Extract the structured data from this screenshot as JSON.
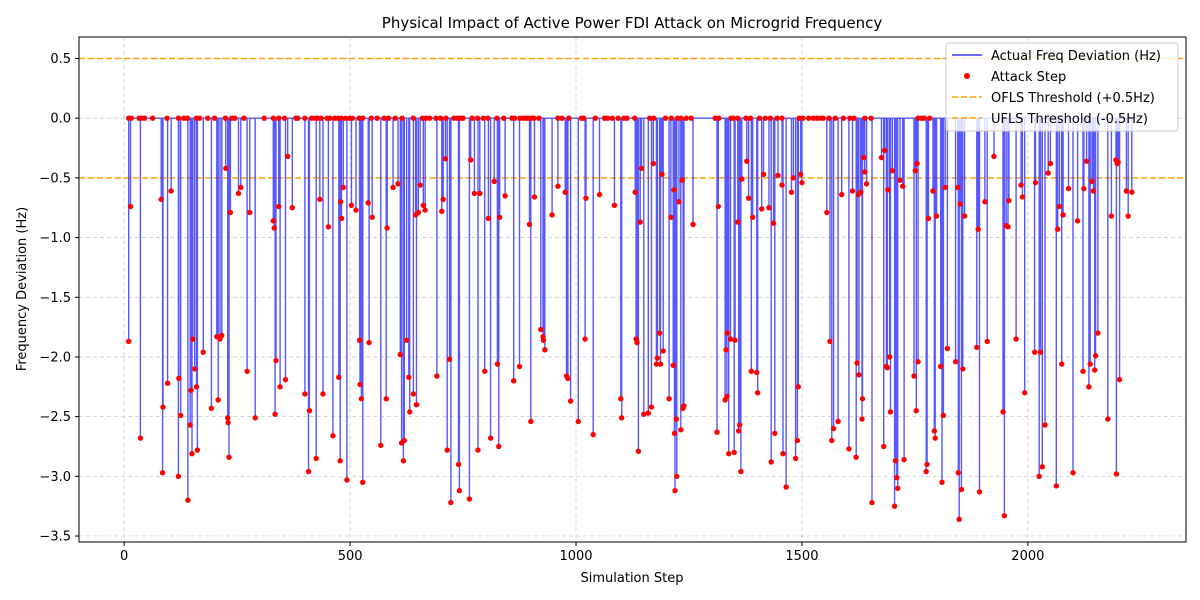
{
  "chart_data": {
    "type": "line",
    "title": "Physical Impact of Active Power FDI Attack on Microgrid Frequency",
    "xlabel": "Simulation Step",
    "ylabel": "Frequency Deviation (Hz)",
    "xlim": [
      -100,
      2350
    ],
    "ylim": [
      -3.55,
      0.68
    ],
    "xticks": [
      0,
      500,
      1000,
      1500,
      2000
    ],
    "yticks": [
      0.5,
      0.0,
      -0.5,
      -1.0,
      -1.5,
      -2.0,
      -2.5,
      -3.0,
      -3.5
    ],
    "ytick_labels": [
      "0.5",
      "0.0",
      "−0.5",
      "−1.0",
      "−1.5",
      "−2.0",
      "−2.5",
      "−3.0",
      "−3.5"
    ],
    "grid": true,
    "legend": {
      "position": "top-right",
      "entries": [
        "Actual Freq Deviation (Hz)",
        "Attack Step",
        "OFLS Threshold (+0.5Hz)",
        "UFLS Threshold (-0.5Hz)"
      ]
    },
    "thresholds": [
      0.5,
      -0.5
    ],
    "colors": {
      "line": "#3b3bff",
      "points": "#ff0000",
      "threshold": "#ffa500",
      "grid": "#cccccc"
    },
    "series_name": "Actual Freq Deviation (Hz)",
    "attack_steps": [
      [
        10,
        -1.87
      ],
      [
        14,
        -0.74
      ],
      [
        36,
        -2.68
      ],
      [
        82,
        -0.68
      ],
      [
        85,
        -2.97
      ],
      [
        86,
        -2.42
      ],
      [
        96,
        -2.22
      ],
      [
        104,
        -0.61
      ],
      [
        120,
        -3.0
      ],
      [
        121,
        -2.18
      ],
      [
        125,
        -2.49
      ],
      [
        141,
        -3.2
      ],
      [
        146,
        -2.57
      ],
      [
        148,
        -2.28
      ],
      [
        150,
        -2.81
      ],
      [
        152,
        -1.85
      ],
      [
        156,
        -2.1
      ],
      [
        160,
        -2.25
      ],
      [
        162,
        -2.78
      ],
      [
        175,
        -1.96
      ],
      [
        193,
        -2.43
      ],
      [
        205,
        -1.83
      ],
      [
        208,
        -2.36
      ],
      [
        212,
        -1.85
      ],
      [
        216,
        -1.82
      ],
      [
        225,
        -0.42
      ],
      [
        229,
        -2.51
      ],
      [
        230,
        -2.55
      ],
      [
        232,
        -2.84
      ],
      [
        235,
        -0.79
      ],
      [
        253,
        -0.63
      ],
      [
        258,
        -0.58
      ],
      [
        272,
        -2.12
      ],
      [
        278,
        -0.79
      ],
      [
        290,
        -2.51
      ],
      [
        330,
        -0.86
      ],
      [
        332,
        -0.92
      ],
      [
        334,
        -2.48
      ],
      [
        336,
        -2.03
      ],
      [
        342,
        -0.74
      ],
      [
        345,
        -2.25
      ],
      [
        357,
        -2.19
      ],
      [
        362,
        -0.32
      ],
      [
        372,
        -0.75
      ],
      [
        400,
        -2.31
      ],
      [
        408,
        -2.96
      ],
      [
        410,
        -2.45
      ],
      [
        425,
        -2.85
      ],
      [
        433,
        -0.68
      ],
      [
        440,
        -2.31
      ],
      [
        452,
        -0.91
      ],
      [
        462,
        -2.66
      ],
      [
        475,
        -2.17
      ],
      [
        478,
        -2.87
      ],
      [
        479,
        -0.7
      ],
      [
        481,
        -0.84
      ],
      [
        485,
        -0.58
      ],
      [
        493,
        -3.03
      ],
      [
        503,
        -0.73
      ],
      [
        513,
        -0.77
      ],
      [
        521,
        -1.86
      ],
      [
        522,
        -2.23
      ],
      [
        525,
        -2.35
      ],
      [
        528,
        -3.05
      ],
      [
        540,
        -0.71
      ],
      [
        542,
        -1.88
      ],
      [
        549,
        -0.83
      ],
      [
        568,
        -2.74
      ],
      [
        580,
        -2.35
      ],
      [
        582,
        -0.92
      ],
      [
        595,
        -0.58
      ],
      [
        606,
        -0.55
      ],
      [
        611,
        -1.98
      ],
      [
        614,
        -2.72
      ],
      [
        618,
        -2.87
      ],
      [
        620,
        -2.7
      ],
      [
        625,
        -1.86
      ],
      [
        630,
        -2.17
      ],
      [
        632,
        -2.46
      ],
      [
        640,
        -2.31
      ],
      [
        645,
        -0.81
      ],
      [
        647,
        -2.4
      ],
      [
        651,
        -0.79
      ],
      [
        655,
        -0.56
      ],
      [
        662,
        -0.73
      ],
      [
        666,
        -0.77
      ],
      [
        692,
        -2.16
      ],
      [
        703,
        -0.78
      ],
      [
        706,
        -0.68
      ],
      [
        711,
        -0.34
      ],
      [
        715,
        -2.78
      ],
      [
        720,
        -2.02
      ],
      [
        723,
        -3.22
      ],
      [
        740,
        -2.9
      ],
      [
        742,
        -3.12
      ],
      [
        764,
        -3.19
      ],
      [
        767,
        -0.35
      ],
      [
        775,
        -0.63
      ],
      [
        783,
        -2.78
      ],
      [
        787,
        -0.63
      ],
      [
        798,
        -2.12
      ],
      [
        806,
        -0.84
      ],
      [
        811,
        -2.68
      ],
      [
        819,
        -0.53
      ],
      [
        826,
        -2.06
      ],
      [
        829,
        -2.75
      ],
      [
        831,
        -0.83
      ],
      [
        843,
        -0.65
      ],
      [
        862,
        -2.2
      ],
      [
        875,
        -2.08
      ],
      [
        897,
        -0.89
      ],
      [
        900,
        -2.54
      ],
      [
        908,
        -0.66
      ],
      [
        922,
        -1.77
      ],
      [
        927,
        -1.83
      ],
      [
        928,
        -1.86
      ],
      [
        931,
        -1.94
      ],
      [
        947,
        -0.81
      ],
      [
        960,
        -0.57
      ],
      [
        976,
        -0.62
      ],
      [
        979,
        -2.16
      ],
      [
        982,
        -2.18
      ],
      [
        988,
        -2.37
      ],
      [
        1005,
        -2.54
      ],
      [
        1020,
        -1.85
      ],
      [
        1022,
        -0.67
      ],
      [
        1038,
        -2.65
      ],
      [
        1052,
        -0.64
      ],
      [
        1085,
        -0.73
      ],
      [
        1099,
        -2.35
      ],
      [
        1101,
        -2.51
      ],
      [
        1131,
        -0.62
      ],
      [
        1133,
        -1.85
      ],
      [
        1135,
        -1.88
      ],
      [
        1138,
        -2.79
      ],
      [
        1142,
        -0.87
      ],
      [
        1145,
        -0.42
      ],
      [
        1150,
        -2.48
      ],
      [
        1160,
        -2.47
      ],
      [
        1167,
        -2.42
      ],
      [
        1171,
        -0.38
      ],
      [
        1178,
        -2.06
      ],
      [
        1180,
        -2.01
      ],
      [
        1185,
        -1.8
      ],
      [
        1187,
        -2.06
      ],
      [
        1190,
        -0.47
      ],
      [
        1193,
        -1.95
      ],
      [
        1206,
        -2.35
      ],
      [
        1210,
        -0.83
      ],
      [
        1215,
        -2.07
      ],
      [
        1217,
        -0.6
      ],
      [
        1218,
        -2.64
      ],
      [
        1219,
        -3.12
      ],
      [
        1222,
        -2.52
      ],
      [
        1223,
        -3.0
      ],
      [
        1228,
        -0.7
      ],
      [
        1232,
        -2.61
      ],
      [
        1237,
        -2.43
      ],
      [
        1239,
        -2.41
      ],
      [
        1235,
        -0.52
      ],
      [
        1259,
        -0.89
      ],
      [
        1312,
        -2.63
      ],
      [
        1315,
        -0.74
      ],
      [
        1330,
        -2.36
      ],
      [
        1332,
        -1.94
      ],
      [
        1334,
        -2.33
      ],
      [
        1335,
        -1.8
      ],
      [
        1338,
        -2.81
      ],
      [
        1342,
        -1.85
      ],
      [
        1350,
        -2.8
      ],
      [
        1352,
        -1.86
      ],
      [
        1358,
        -0.87
      ],
      [
        1360,
        -2.62
      ],
      [
        1362,
        -2.57
      ],
      [
        1365,
        -2.96
      ],
      [
        1367,
        -0.51
      ],
      [
        1378,
        -0.36
      ],
      [
        1382,
        -0.67
      ],
      [
        1388,
        -2.12
      ],
      [
        1391,
        -0.83
      ],
      [
        1400,
        -2.13
      ],
      [
        1402,
        -2.3
      ],
      [
        1411,
        -0.76
      ],
      [
        1415,
        -0.47
      ],
      [
        1427,
        -0.75
      ],
      [
        1432,
        -2.88
      ],
      [
        1437,
        -0.88
      ],
      [
        1440,
        -2.64
      ],
      [
        1447,
        -0.48
      ],
      [
        1456,
        -0.56
      ],
      [
        1458,
        -2.81
      ],
      [
        1465,
        -3.09
      ],
      [
        1477,
        -0.62
      ],
      [
        1481,
        -0.5
      ],
      [
        1486,
        -2.85
      ],
      [
        1490,
        -2.7
      ],
      [
        1492,
        -2.25
      ],
      [
        1497,
        -0.47
      ],
      [
        1500,
        -0.54
      ],
      [
        1555,
        -0.79
      ],
      [
        1562,
        -1.87
      ],
      [
        1566,
        -2.7
      ],
      [
        1570,
        -2.6
      ],
      [
        1580,
        -2.54
      ],
      [
        1588,
        -0.64
      ],
      [
        1604,
        -2.77
      ],
      [
        1612,
        -0.61
      ],
      [
        1620,
        -2.84
      ],
      [
        1622,
        -2.05
      ],
      [
        1625,
        -0.64
      ],
      [
        1626,
        -2.15
      ],
      [
        1630,
        -0.62
      ],
      [
        1633,
        -2.52
      ],
      [
        1634,
        -2.35
      ],
      [
        1637,
        -0.33
      ],
      [
        1639,
        -0.45
      ],
      [
        1643,
        -0.55
      ],
      [
        1655,
        -3.22
      ],
      [
        1676,
        -0.33
      ],
      [
        1681,
        -2.75
      ],
      [
        1683,
        -0.27
      ],
      [
        1687,
        -2.08
      ],
      [
        1689,
        -2.09
      ],
      [
        1690,
        -0.6
      ],
      [
        1694,
        -2.0
      ],
      [
        1696,
        -2.46
      ],
      [
        1700,
        -0.44
      ],
      [
        1705,
        -3.25
      ],
      [
        1707,
        -2.87
      ],
      [
        1710,
        -3.01
      ],
      [
        1712,
        -3.1
      ],
      [
        1717,
        -0.52
      ],
      [
        1723,
        -0.57
      ],
      [
        1726,
        -2.86
      ],
      [
        1748,
        -2.16
      ],
      [
        1751,
        -0.44
      ],
      [
        1753,
        -2.45
      ],
      [
        1755,
        -0.38
      ],
      [
        1757,
        -2.04
      ],
      [
        1775,
        -2.96
      ],
      [
        1777,
        -2.9
      ],
      [
        1780,
        -0.84
      ],
      [
        1790,
        -0.61
      ],
      [
        1793,
        -2.62
      ],
      [
        1795,
        -2.68
      ],
      [
        1798,
        -0.82
      ],
      [
        1807,
        -2.08
      ],
      [
        1810,
        -3.05
      ],
      [
        1813,
        -2.49
      ],
      [
        1817,
        -0.58
      ],
      [
        1822,
        -1.93
      ],
      [
        1840,
        -2.04
      ],
      [
        1845,
        -0.58
      ],
      [
        1846,
        -2.97
      ],
      [
        1848,
        -3.36
      ],
      [
        1850,
        -0.72
      ],
      [
        1853,
        -3.11
      ],
      [
        1856,
        -2.1
      ],
      [
        1860,
        -0.82
      ],
      [
        1887,
        -1.92
      ],
      [
        1890,
        -0.93
      ],
      [
        1893,
        -3.13
      ],
      [
        1905,
        -0.7
      ],
      [
        1910,
        -1.87
      ],
      [
        1925,
        -0.32
      ],
      [
        1945,
        -2.46
      ],
      [
        1948,
        -3.33
      ],
      [
        1952,
        -0.9
      ],
      [
        1956,
        -0.91
      ],
      [
        1958,
        -0.69
      ],
      [
        1974,
        -1.85
      ],
      [
        1985,
        -0.56
      ],
      [
        1988,
        -0.66
      ],
      [
        1993,
        -2.3
      ],
      [
        2015,
        -1.96
      ],
      [
        2017,
        -0.54
      ],
      [
        2025,
        -3.0
      ],
      [
        2028,
        -1.96
      ],
      [
        2032,
        -2.92
      ],
      [
        2038,
        -2.57
      ],
      [
        2045,
        -0.46
      ],
      [
        2050,
        -0.38
      ],
      [
        2063,
        -3.08
      ],
      [
        2066,
        -0.93
      ],
      [
        2070,
        -0.74
      ],
      [
        2075,
        -2.06
      ],
      [
        2078,
        -0.81
      ],
      [
        2090,
        -0.59
      ],
      [
        2100,
        -2.97
      ],
      [
        2110,
        -0.86
      ],
      [
        2122,
        -2.12
      ],
      [
        2124,
        -0.59
      ],
      [
        2130,
        -0.36
      ],
      [
        2135,
        -2.25
      ],
      [
        2138,
        -2.06
      ],
      [
        2142,
        -0.53
      ],
      [
        2145,
        -0.61
      ],
      [
        2148,
        -2.11
      ],
      [
        2150,
        -1.99
      ],
      [
        2155,
        -1.8
      ],
      [
        2177,
        -2.52
      ],
      [
        2185,
        -0.82
      ],
      [
        2195,
        -0.35
      ],
      [
        2196,
        -2.98
      ],
      [
        2198,
        -0.38
      ],
      [
        2200,
        -0.37
      ],
      [
        2203,
        -2.19
      ],
      [
        2218,
        -0.61
      ],
      [
        2222,
        -0.82
      ],
      [
        2230,
        -0.62
      ]
    ]
  }
}
